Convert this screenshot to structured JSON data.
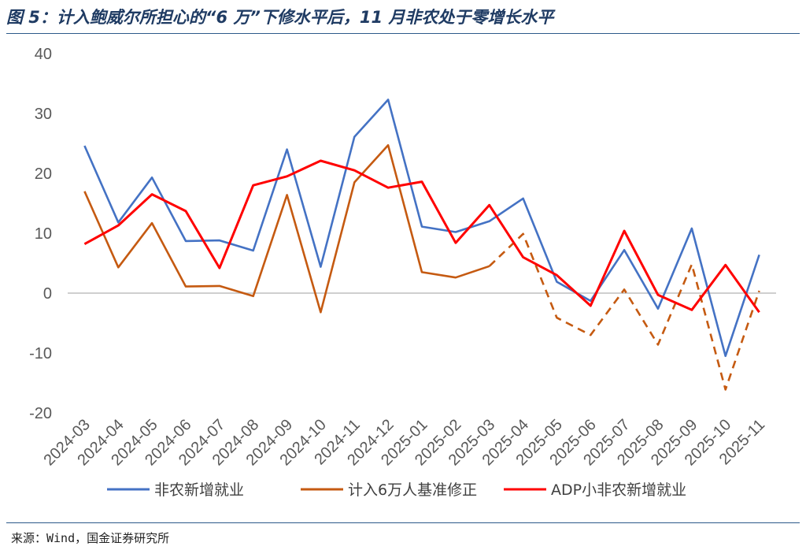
{
  "figure": {
    "title": "图 5：计入鲍威尔所担心的“6 万”下修水平后，11 月非农处于零增长水平",
    "source": "来源：Wind，国金证券研究所"
  },
  "chart_data": {
    "type": "line",
    "title": "图 5：计入鲍威尔所担心的“6 万”下修水平后，11 月非农处于零增长水平",
    "xlabel": "",
    "ylabel": "",
    "ylim": [
      -20,
      40
    ],
    "yticks": [
      40,
      30,
      20,
      10,
      0,
      -10,
      -20
    ],
    "grid": false,
    "legend": "bottom",
    "categories": [
      "2024-03",
      "2024-04",
      "2024-05",
      "2024-06",
      "2024-07",
      "2024-08",
      "2024-09",
      "2024-10",
      "2024-11",
      "2024-12",
      "2025-01",
      "2025-02",
      "2025-03",
      "2025-04",
      "2025-05",
      "2025-06",
      "2025-07",
      "2025-08",
      "2025-09",
      "2025-10",
      "2025-11"
    ],
    "series": [
      {
        "name": "非农新增就业",
        "color": "#4472c4",
        "values": [
          24.6,
          11.8,
          19.3,
          8.7,
          8.8,
          7.1,
          24.0,
          4.4,
          26.1,
          32.3,
          11.1,
          10.2,
          12.0,
          15.8,
          1.9,
          -1.3,
          7.2,
          -2.6,
          10.8,
          -10.5,
          6.4
        ]
      },
      {
        "name": "计入6万人基准修正",
        "color": "#c55a11",
        "values": [
          17.0,
          4.3,
          11.7,
          1.1,
          1.2,
          -0.5,
          16.4,
          -3.2,
          18.5,
          24.7,
          3.5,
          2.6,
          4.5,
          9.9,
          -4.1,
          -7.0,
          0.6,
          -8.6,
          4.8,
          -16.1,
          0.4
        ],
        "dashed_from_index": 12
      },
      {
        "name": "ADP小非农新增就业",
        "color": "#ff0000",
        "values": [
          8.2,
          11.3,
          16.5,
          13.7,
          4.2,
          18.0,
          19.5,
          22.1,
          20.5,
          17.6,
          18.6,
          8.4,
          14.7,
          6.0,
          3.0,
          -2.1,
          10.4,
          -0.3,
          -2.8,
          4.7,
          -3.2
        ]
      }
    ]
  }
}
